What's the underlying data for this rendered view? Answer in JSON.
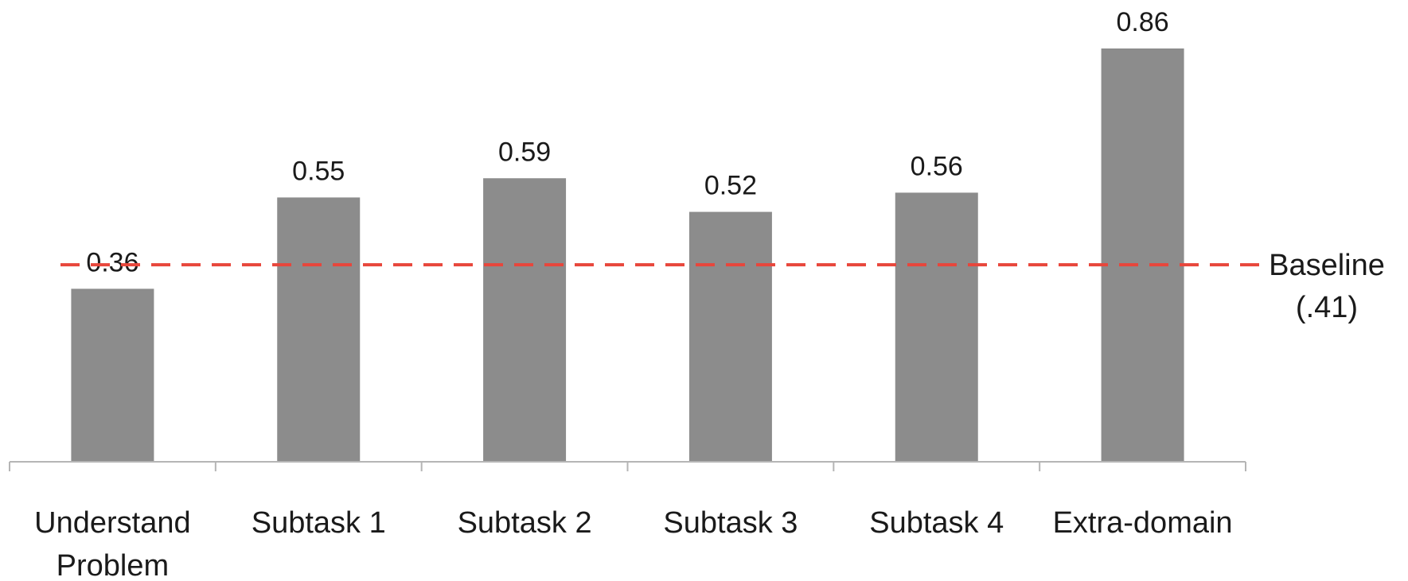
{
  "chart_data": {
    "type": "bar",
    "categories": [
      [
        "Understand",
        "Problem"
      ],
      [
        "Subtask 1"
      ],
      [
        "Subtask 2"
      ],
      [
        "Subtask 3"
      ],
      [
        "Subtask 4"
      ],
      [
        "Extra-domain"
      ]
    ],
    "values": [
      0.36,
      0.55,
      0.59,
      0.52,
      0.56,
      0.86
    ],
    "value_labels": [
      "0.36",
      "0.55",
      "0.59",
      "0.52",
      "0.56",
      "0.86"
    ],
    "reference_line": {
      "value": 0.41,
      "label_lines": [
        "Baseline",
        "(.41)"
      ],
      "color": "#e8463b",
      "style": "dashed"
    },
    "ylim": [
      0,
      0.86
    ],
    "title": "",
    "xlabel": "",
    "ylabel": "",
    "grid": false,
    "bar_color": "#8c8c8c",
    "axis_color": "#b5b5b5"
  }
}
